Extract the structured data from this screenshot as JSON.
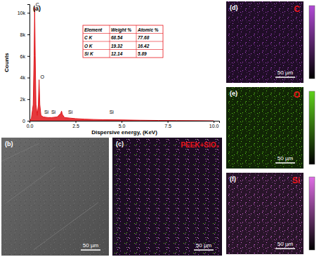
{
  "chart_data": {
    "type": "area",
    "title": "(a)",
    "color": "#e0161b",
    "x_label": "Dispersive energy, (KeV)",
    "y_label": "Counts",
    "x": [
      0,
      0.1,
      0.2,
      0.25,
      0.28,
      0.31,
      0.35,
      0.42,
      0.48,
      0.52,
      0.56,
      0.62,
      0.75,
      1.0,
      1.2,
      1.5,
      1.7,
      1.74,
      1.78,
      1.9,
      2.2,
      2.5,
      3,
      3.5,
      4,
      5,
      6,
      7,
      8,
      9,
      10
    ],
    "values": [
      0,
      200,
      1500,
      6000,
      10500,
      6000,
      1500,
      500,
      1500,
      3800,
      1500,
      500,
      350,
      300,
      300,
      350,
      700,
      900,
      600,
      300,
      250,
      200,
      150,
      120,
      100,
      80,
      50,
      30,
      20,
      10,
      0
    ],
    "xlim": [
      0,
      10.3
    ],
    "xticks": [
      {
        "value": 0,
        "label": "0.0"
      },
      {
        "value": 2.5,
        "label": "2.5"
      },
      {
        "value": 5,
        "label": "5.0"
      },
      {
        "value": 7.5,
        "label": "7.5"
      },
      {
        "value": 10,
        "label": "10.0"
      }
    ],
    "ylim": [
      0,
      10800
    ],
    "yticks": [
      0,
      {
        "value": 2000,
        "label": "2k"
      },
      {
        "value": 4000,
        "label": "4k"
      },
      {
        "value": 6000,
        "label": "6k"
      },
      {
        "value": 8000,
        "label": "8k"
      },
      {
        "value": 10000,
        "label": "10k"
      }
    ],
    "grid": false,
    "annotations": [
      {
        "text": "C",
        "x": 0.3,
        "y": 10500
      },
      {
        "text": "O",
        "x": 0.55,
        "y": 3800
      },
      {
        "text": "Si",
        "x": 0.76,
        "y": 500
      },
      {
        "text": "Si",
        "x": 1.14,
        "y": 500
      },
      {
        "text": "Si",
        "x": 2.06,
        "y": 500
      },
      {
        "text": "Si",
        "x": 4.3,
        "y": 500
      }
    ]
  },
  "inset_table": {
    "columns": [
      "Element",
      "Weight %",
      "Atomic %"
    ],
    "rows": [
      [
        "C K",
        68.54,
        77.68
      ],
      [
        "O K",
        19.32,
        16.42
      ],
      [
        "Si K",
        12.14,
        5.89
      ]
    ]
  },
  "sem_image": {
    "label": "(b)",
    "scale_bar": "50 µm"
  },
  "overlay_map": {
    "label": "(c)",
    "title": "PEEK+SiO₂",
    "scale_bar": "50 µm"
  },
  "element_maps": [
    {
      "label": "(d)",
      "element": "C",
      "color": "#b24ad6",
      "scale_bar": "50 µm"
    },
    {
      "label": "(e)",
      "element": "O",
      "color": "#5fd11c",
      "scale_bar": "50 µm"
    },
    {
      "label": "(f)",
      "element": "Si",
      "color": "#e06ee6",
      "scale_bar": "50 µm"
    }
  ]
}
